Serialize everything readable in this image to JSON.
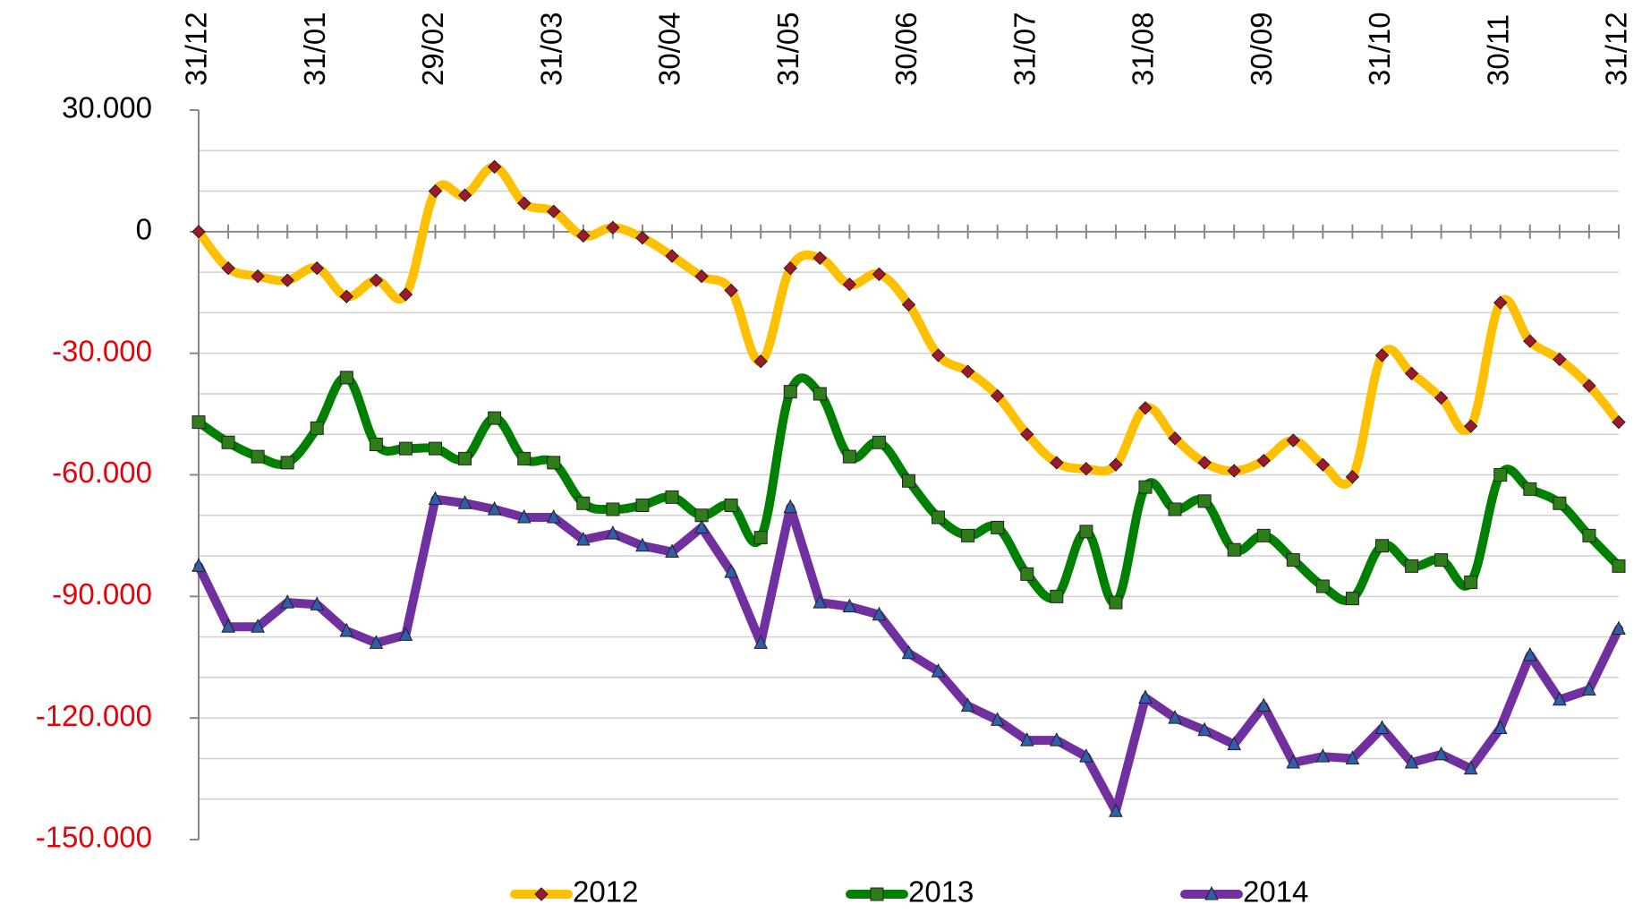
{
  "chart_data": {
    "type": "line",
    "categories": [
      "31/12",
      null,
      null,
      null,
      "31/01",
      null,
      null,
      null,
      "29/02",
      null,
      null,
      null,
      "31/03",
      null,
      null,
      null,
      "30/04",
      null,
      null,
      null,
      "31/05",
      null,
      null,
      null,
      "30/06",
      null,
      null,
      null,
      "31/07",
      null,
      null,
      null,
      "31/08",
      null,
      null,
      null,
      "30/09",
      null,
      null,
      null,
      "31/10",
      null,
      null,
      null,
      "30/11",
      null,
      null,
      null,
      "31/12"
    ],
    "ylim": [
      30000,
      -150000
    ],
    "yticks": [
      {
        "value": 30000,
        "label": "30.000"
      },
      0,
      {
        "value": -30000,
        "label": "-30.000"
      },
      {
        "value": -60000,
        "label": "-60.000"
      },
      {
        "value": -90000,
        "label": "-90.000"
      },
      {
        "value": -120000,
        "label": "-120.000"
      },
      {
        "value": -150000,
        "label": "-150.000"
      }
    ],
    "grid_yticks": [
      20000,
      10000,
      -10000,
      -20000,
      -30000,
      -40000,
      -50000,
      -60000,
      -70000,
      -80000,
      -90000,
      -100000,
      -110000,
      -120000,
      -130000,
      -140000
    ],
    "grid": true,
    "negative_label_color": "#e8000b",
    "legend": "bottom",
    "series": [
      {
        "name": "2012",
        "color": "#ffc000",
        "marker": "diamond",
        "marker_color": "#a0192a",
        "smooth": true,
        "values": [
          0,
          -9000,
          -11000,
          -12000,
          -9000,
          -16000,
          -12000,
          -15500,
          10000,
          9000,
          16000,
          7000,
          5000,
          -1000,
          1000,
          -1500,
          -6000,
          -11000,
          -14500,
          -32000,
          -9000,
          -6500,
          -13000,
          -10500,
          -18000,
          -30500,
          -34500,
          -40500,
          -50000,
          -57000,
          -58500,
          -57500,
          -43500,
          -51000,
          -57000,
          -59000,
          -56500,
          -51500,
          -57500,
          -60500,
          -30500,
          -35000,
          -41000,
          -48000,
          -17500,
          -27000,
          -31500,
          -38000,
          -47000
        ]
      },
      {
        "name": "2013",
        "color": "#008000",
        "marker": "square",
        "marker_color": "#2e7d1a",
        "smooth": true,
        "values": [
          -47000,
          -52000,
          -55500,
          -57000,
          -48500,
          -36000,
          -52500,
          -53500,
          -53500,
          -56000,
          -46000,
          -56000,
          -57000,
          -67000,
          -68500,
          -67500,
          -65500,
          -70000,
          -67500,
          -75500,
          -39500,
          -40000,
          -55500,
          -52000,
          -61500,
          -70500,
          -75000,
          -73000,
          -84500,
          -90000,
          -74000,
          -91500,
          -63000,
          -68500,
          -66500,
          -78500,
          -75000,
          -81000,
          -87500,
          -90500,
          -77500,
          -82500,
          -81000,
          -86500,
          -60000,
          -63500,
          -67000,
          -75000,
          -82500
        ]
      },
      {
        "name": "2014",
        "color": "#7030a0",
        "marker": "triangle",
        "marker_color": "#2f5fa8",
        "smooth": false,
        "values": [
          -82500,
          -97500,
          -97500,
          -91500,
          -92000,
          -98500,
          -101500,
          -99500,
          -66000,
          -67000,
          -68500,
          -70500,
          -70500,
          -76000,
          -74500,
          -77500,
          -79000,
          -73000,
          -84000,
          -101500,
          -68000,
          -91500,
          -92500,
          -94500,
          -104000,
          -108500,
          -117000,
          -120500,
          -125500,
          -125500,
          -129500,
          -143000,
          -115000,
          -120000,
          -123000,
          -126500,
          -117000,
          -131000,
          -129500,
          -130000,
          -122500,
          -131000,
          -129000,
          -132500,
          -122500,
          -104500,
          -115500,
          -113000,
          -98000
        ]
      }
    ]
  }
}
